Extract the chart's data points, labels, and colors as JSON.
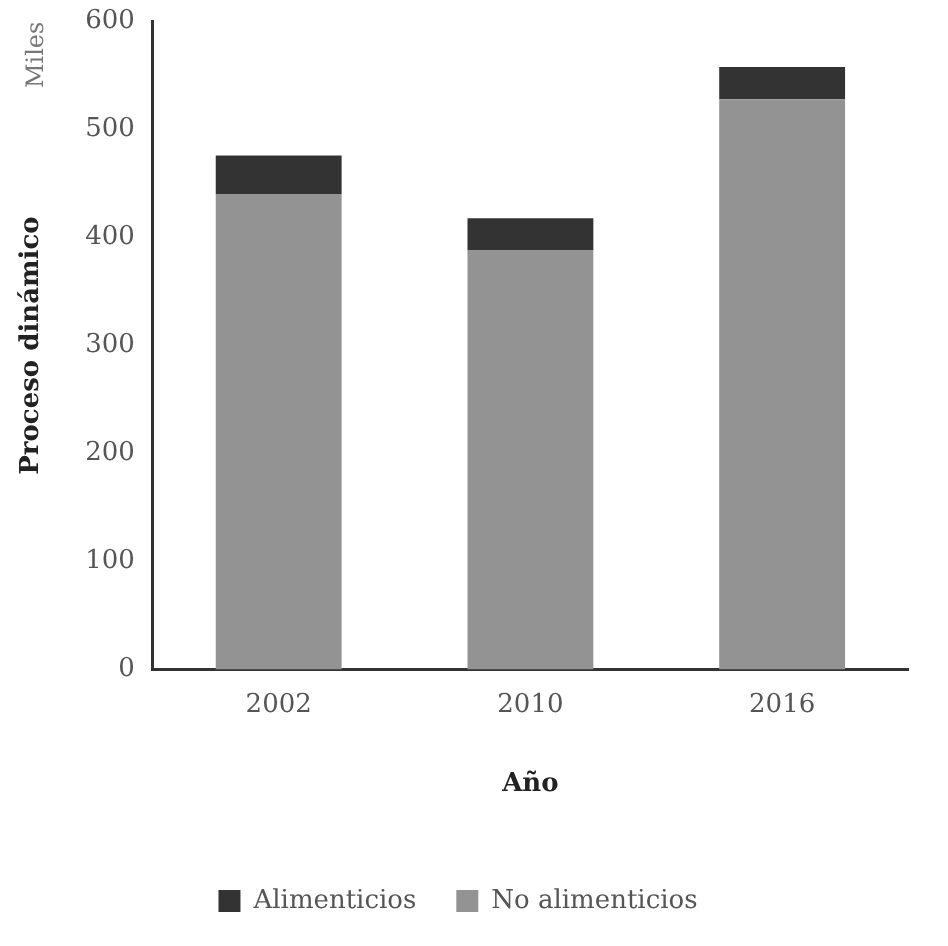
{
  "chart_data": {
    "type": "bar",
    "stacked": true,
    "xlabel": "Año",
    "ylabel": "Proceso dinámico",
    "annotations": [
      "Miles"
    ],
    "categories": [
      "2002",
      "2010",
      "2016"
    ],
    "series": [
      {
        "name": "No alimenticios",
        "color": "#939393",
        "values": [
          440,
          388,
          528
        ]
      },
      {
        "name": "Alimenticios",
        "color": "#333333",
        "values": [
          36,
          30,
          30
        ]
      }
    ],
    "ylim": [
      0,
      600
    ],
    "yticks": [
      0,
      100,
      200,
      300,
      400,
      500,
      600
    ],
    "grid": false,
    "legend": "bottom"
  }
}
